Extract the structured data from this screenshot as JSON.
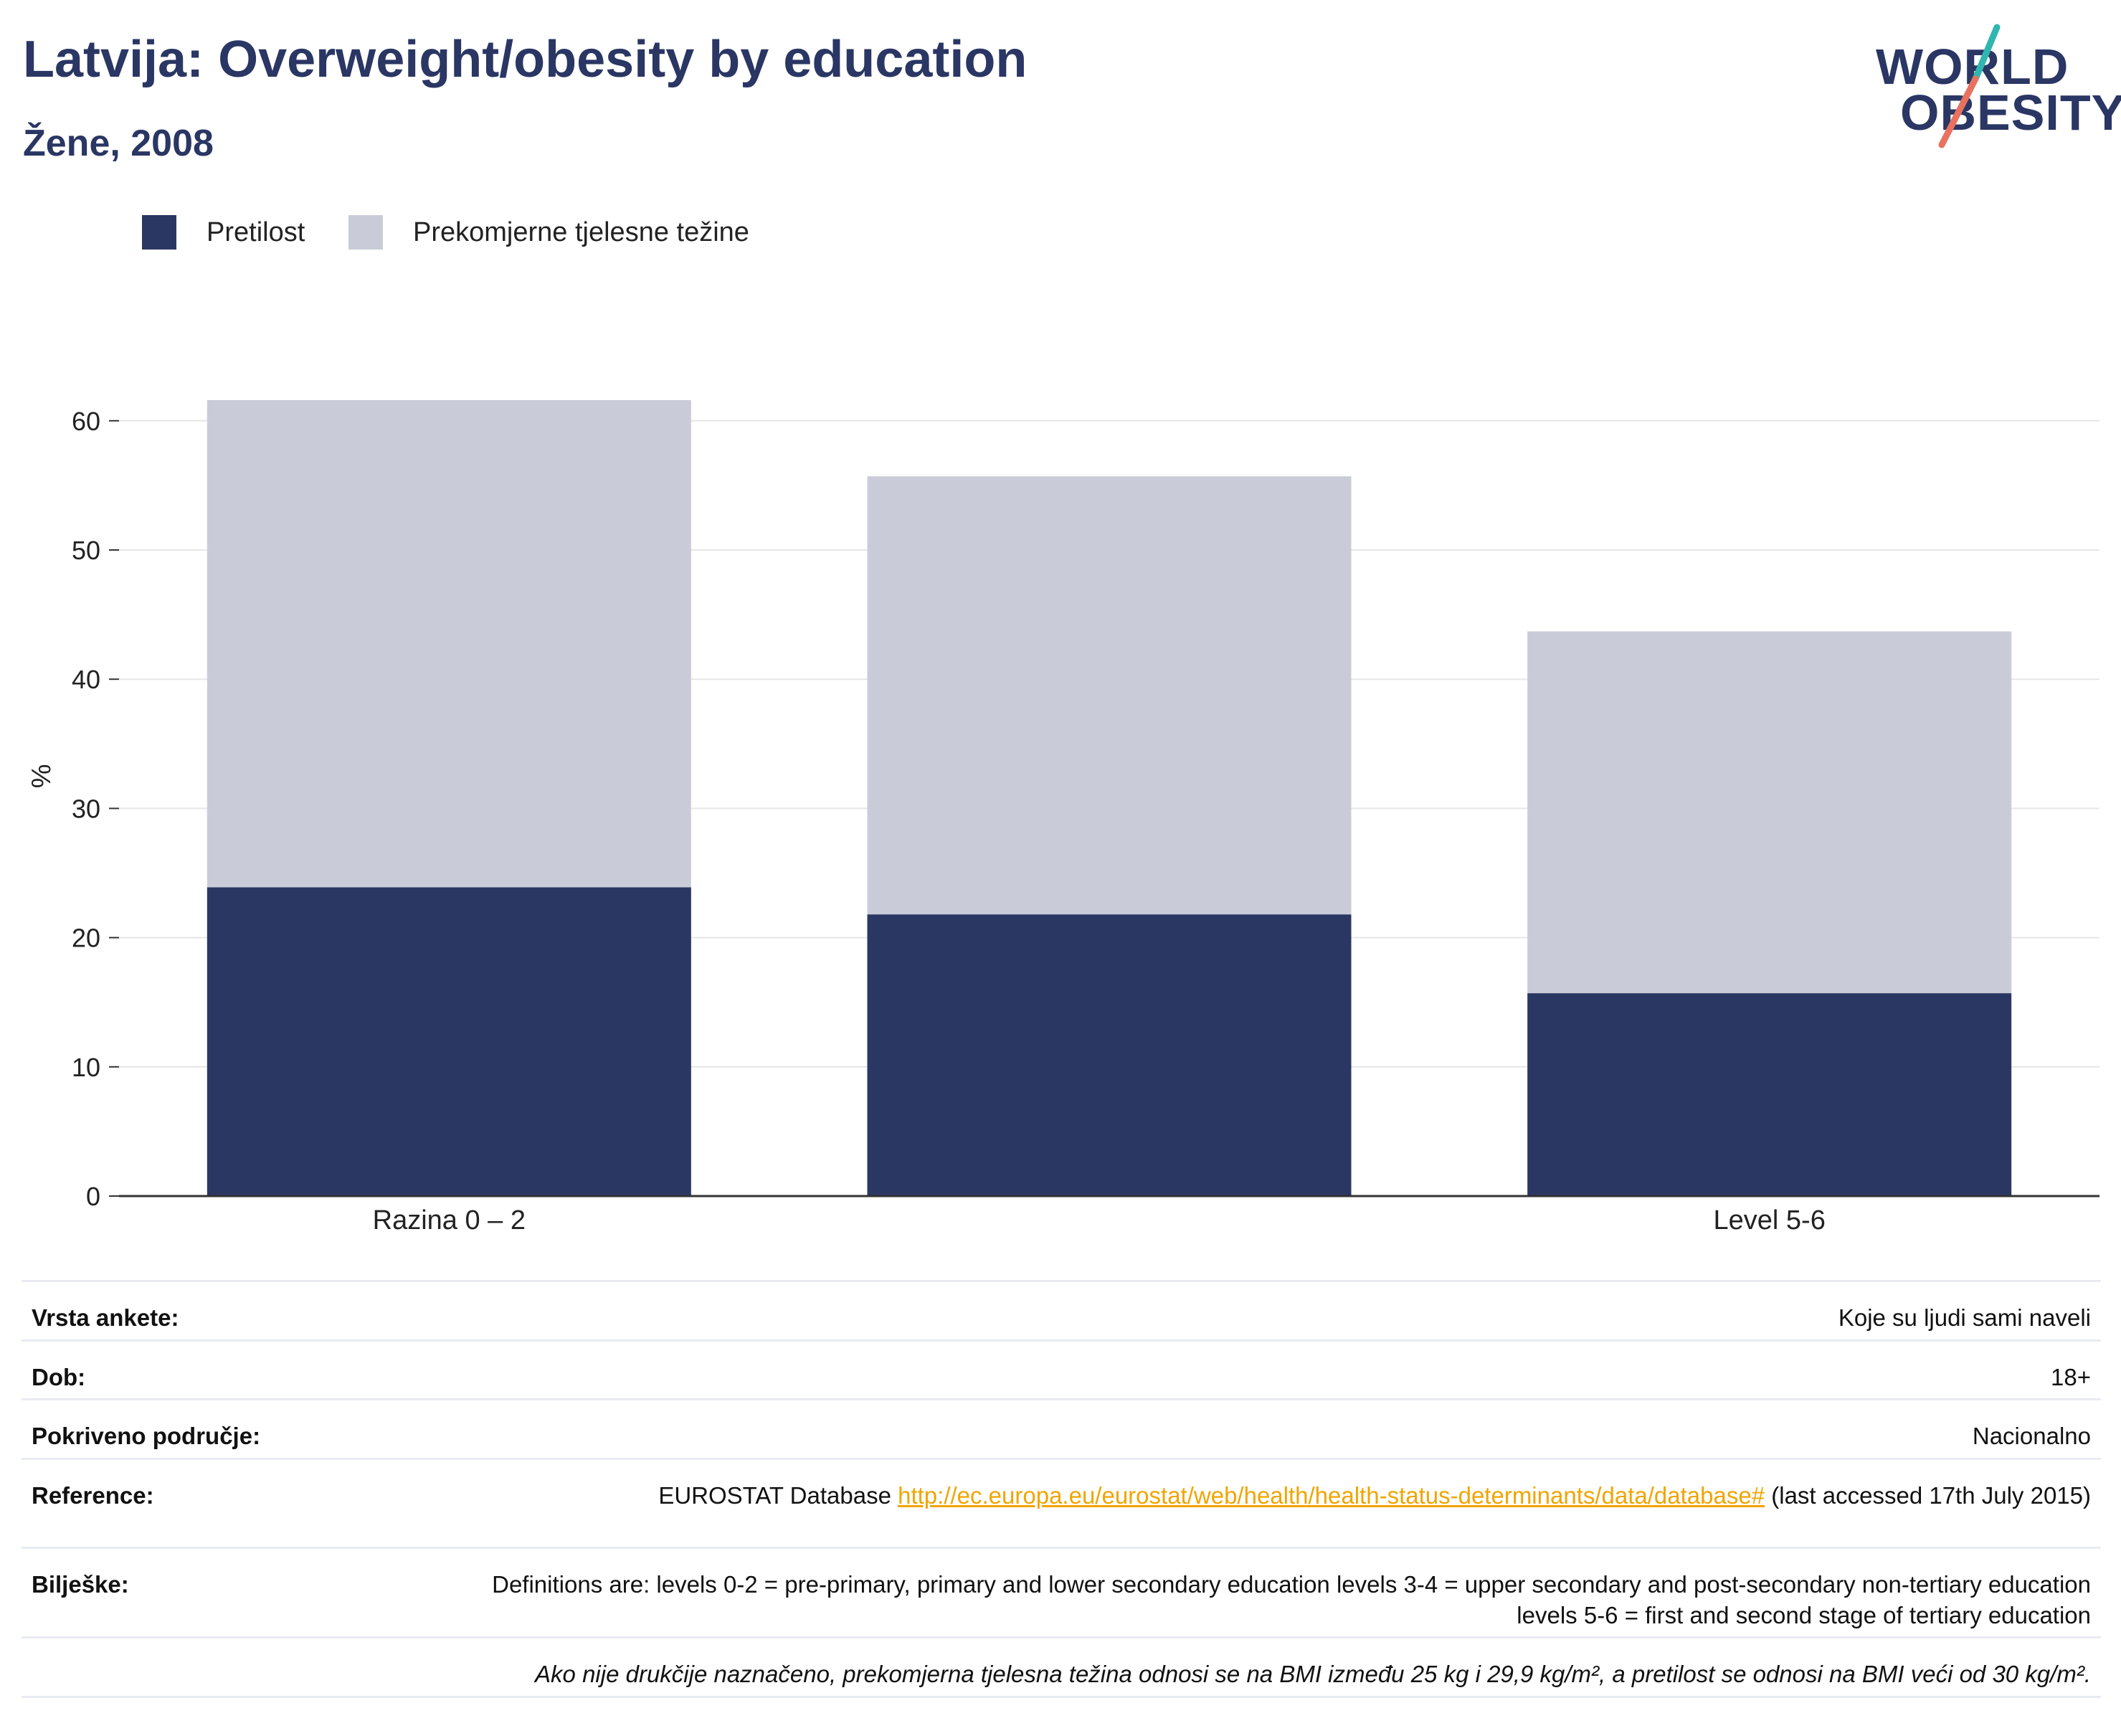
{
  "header": {
    "title": "Latvija: Overweight/obesity by education",
    "subtitle": "Žene, 2008"
  },
  "logo": {
    "line1": "WORLD",
    "line2": "OBESITY",
    "colors": {
      "text": "#2a3663",
      "slash_teal": "#2fb6b0",
      "slash_coral": "#e8715f"
    }
  },
  "legend": {
    "items": [
      {
        "label": "Pretilost",
        "color": "#2b3763"
      },
      {
        "label": "Prekomjerne tjelesne težine",
        "color": "#c9ccd8"
      }
    ]
  },
  "chart_data": {
    "type": "bar",
    "stacked": true,
    "categories": [
      "Razina 0 – 2",
      "",
      "Level 5-6"
    ],
    "series": [
      {
        "name": "Pretilost",
        "values": [
          23.9,
          21.8,
          15.7
        ],
        "color": "#2b3763"
      },
      {
        "name": "Prekomjerne tjelesne težine",
        "values": [
          37.7,
          33.9,
          28.0
        ],
        "color": "#c9ccd8"
      }
    ],
    "totals": [
      61.6,
      55.7,
      43.7
    ],
    "ylabel": "%",
    "ylim": [
      0,
      65
    ],
    "yticks": [
      0,
      10,
      20,
      30,
      40,
      50,
      60
    ],
    "grid": true,
    "legend_position": "top-left"
  },
  "info": {
    "rows": [
      {
        "key": "Vrsta ankete:",
        "value": "Koje su ljudi sami naveli"
      },
      {
        "key": "Dob:",
        "value": "18+"
      },
      {
        "key": "Pokriveno područje:",
        "value": "Nacionalno"
      },
      {
        "key": "Reference:",
        "value_prefix": "EUROSTAT Database ",
        "link": "http://ec.europa.eu/eurostat/web/health/health-status-determinants/data/database#",
        "value_suffix": " (last accessed 17th July 2015)"
      },
      {
        "key": "Bilješke:",
        "value": "Definitions are: levels 0-2 = pre-primary, primary and lower secondary education levels 3-4 = upper secondary and post-secondary non-tertiary education levels 5-6 = first and second stage of tertiary education"
      }
    ],
    "footnote": "Ako nije drukčije naznačeno, prekomjerna tjelesna težina odnosi se na BMI između 25 kg i 29,9 kg/m², a pretilost se odnosi na BMI veći od 30 kg/m²."
  }
}
